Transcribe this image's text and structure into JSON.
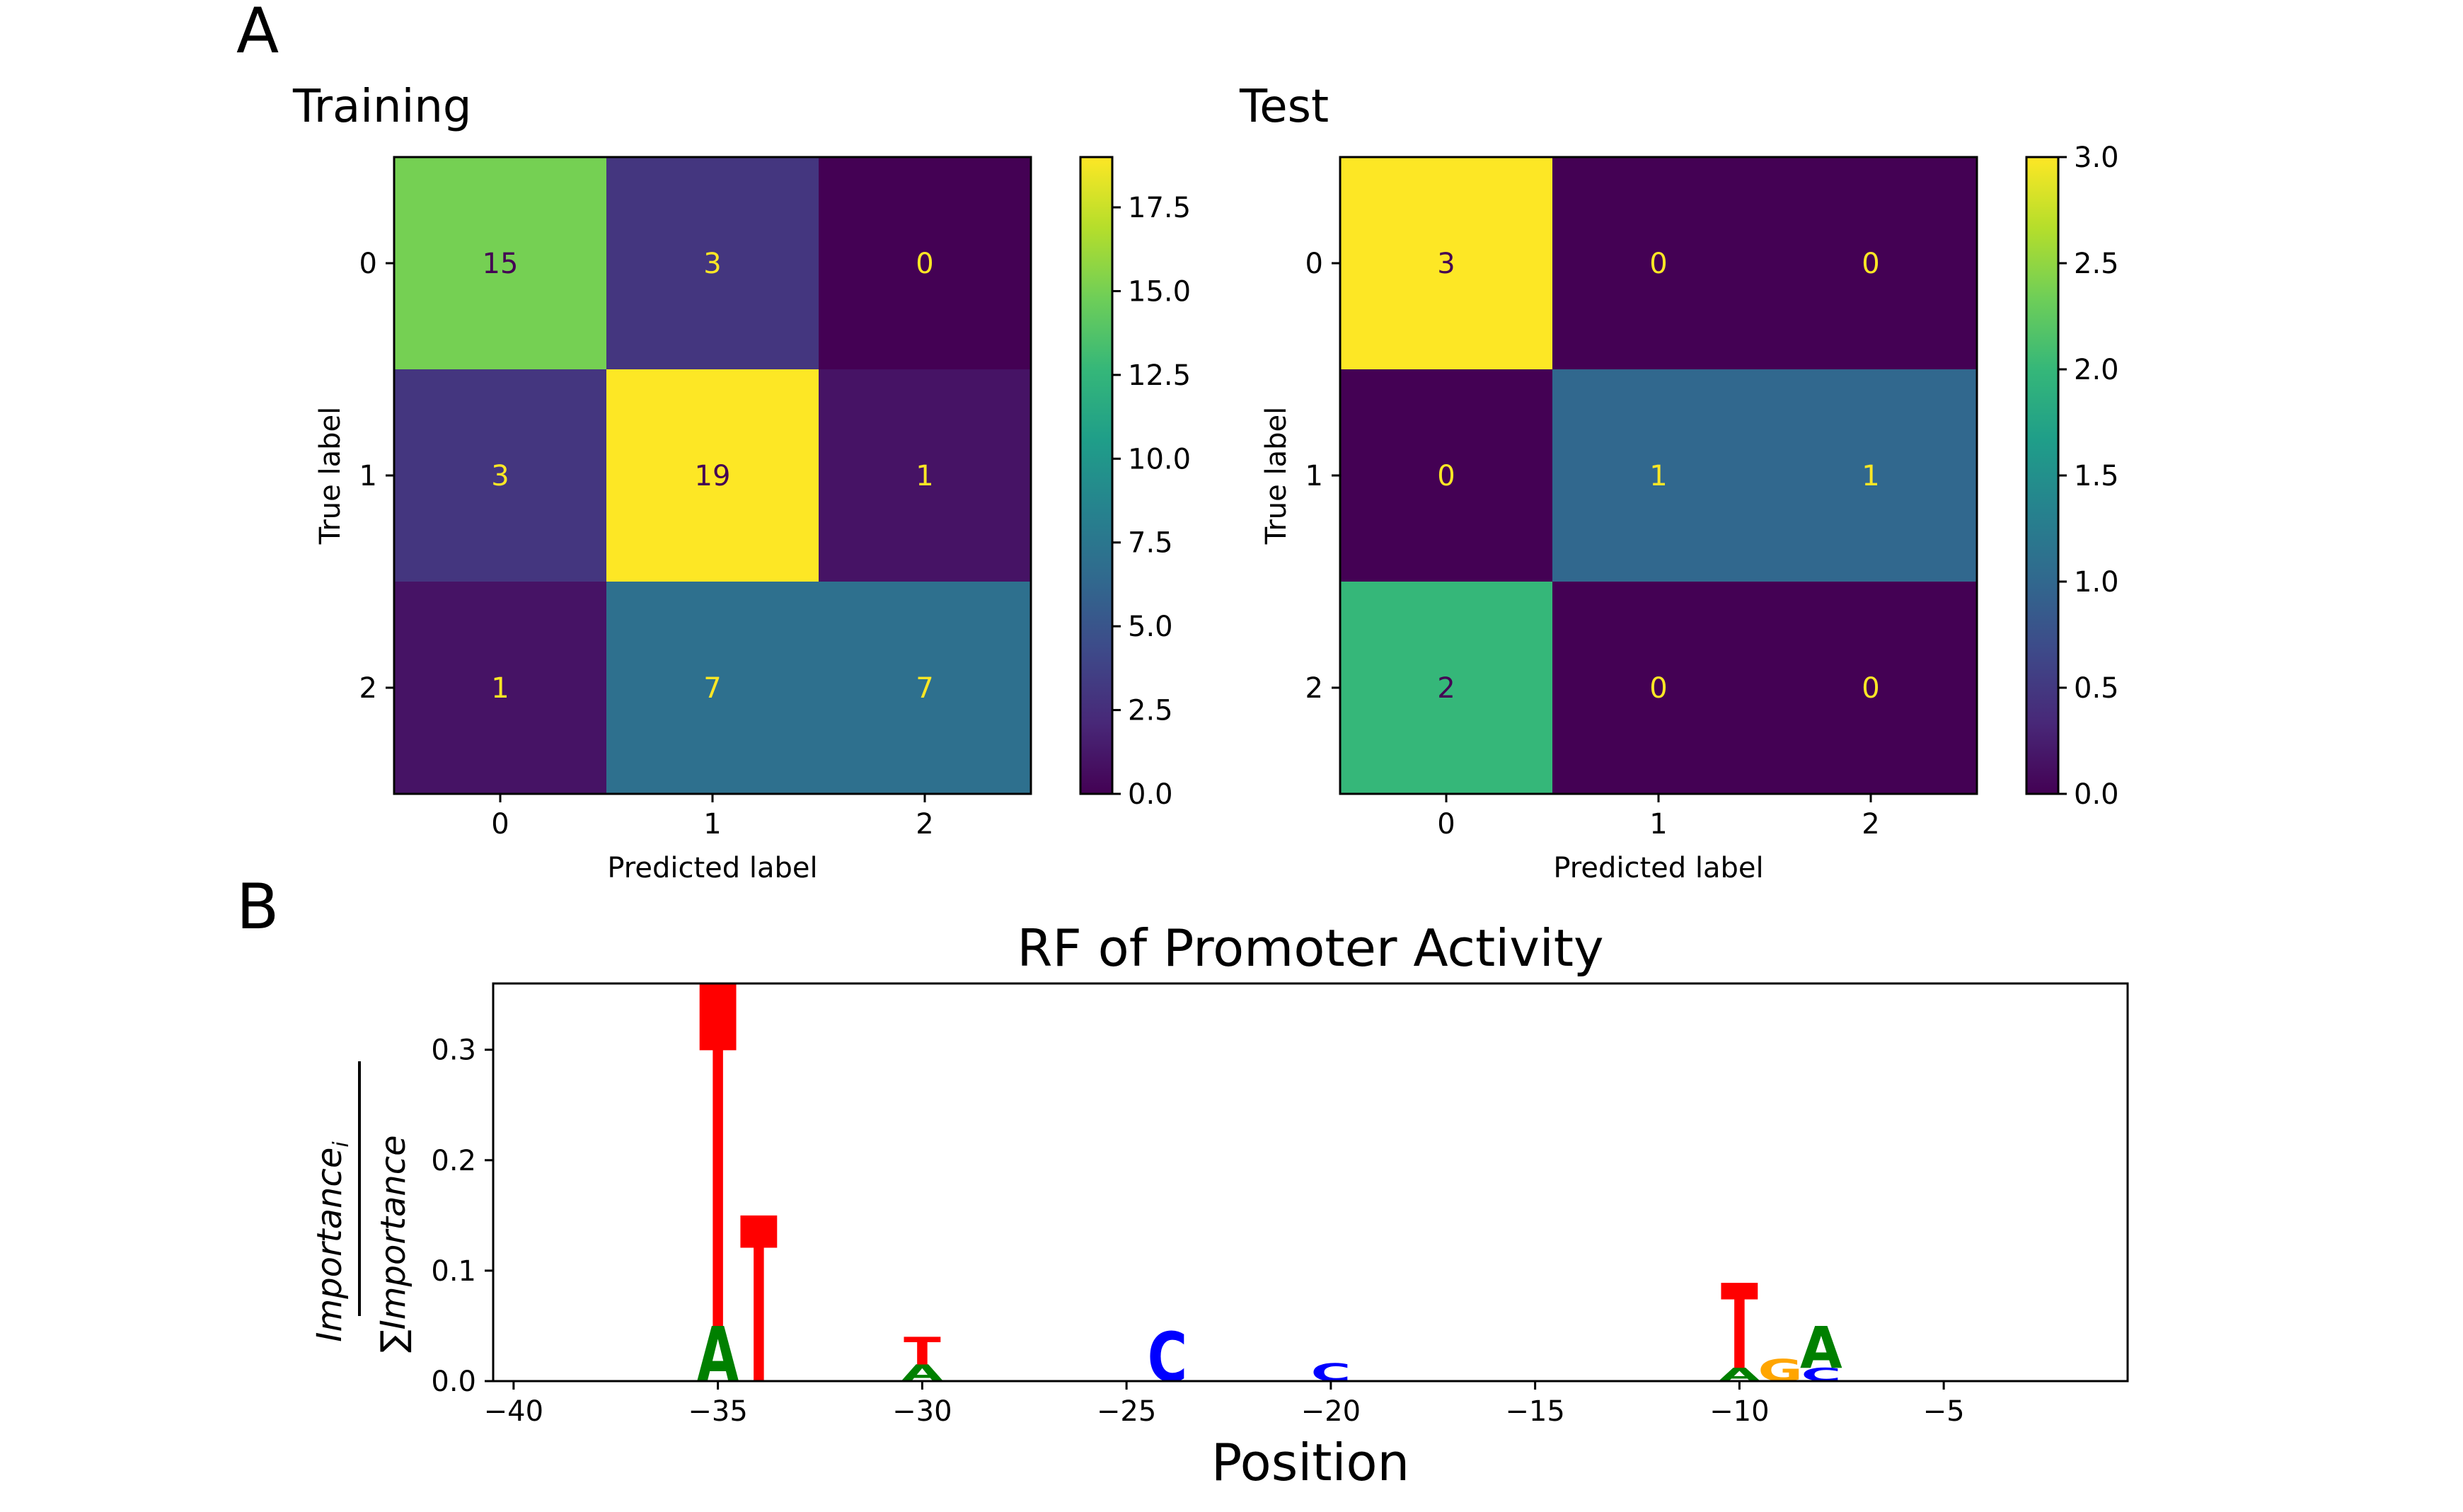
{
  "panel_labels": {
    "a": "A",
    "b": "B"
  },
  "colors": {
    "viridis_stops": [
      "#440154",
      "#482878",
      "#3e4989",
      "#31688e",
      "#26828e",
      "#1f9e89",
      "#35b779",
      "#6ece58",
      "#b5de2b",
      "#fde725"
    ],
    "dark_text": "#440154",
    "light_text": "#fde725",
    "base_T": "#ff0000",
    "base_A": "#008000",
    "base_C": "#0000ff",
    "base_G": "#ffa500"
  },
  "chart_data": [
    {
      "type": "heatmap",
      "title": "Training",
      "xlabel": "Predicted label",
      "ylabel": "True label",
      "x_ticks": [
        "0",
        "1",
        "2"
      ],
      "y_ticks": [
        "0",
        "1",
        "2"
      ],
      "matrix": [
        [
          15,
          3,
          0
        ],
        [
          3,
          19,
          1
        ],
        [
          1,
          7,
          7
        ]
      ],
      "cell_labels": [
        [
          "15",
          "3",
          "0"
        ],
        [
          "3",
          "19",
          "1"
        ],
        [
          "1",
          "7",
          "7"
        ]
      ],
      "vmin": 0,
      "vmax": 19,
      "colorbar_ticks": [
        0.0,
        2.5,
        5.0,
        7.5,
        10.0,
        12.5,
        15.0,
        17.5
      ],
      "colorbar_tick_labels": [
        "0.0",
        "2.5",
        "5.0",
        "7.5",
        "10.0",
        "12.5",
        "15.0",
        "17.5"
      ]
    },
    {
      "type": "heatmap",
      "title": "Test",
      "xlabel": "Predicted label",
      "ylabel": "True label",
      "x_ticks": [
        "0",
        "1",
        "2"
      ],
      "y_ticks": [
        "0",
        "1",
        "2"
      ],
      "matrix": [
        [
          3,
          0,
          0
        ],
        [
          0,
          1,
          1
        ],
        [
          2,
          0,
          0
        ]
      ],
      "cell_labels": [
        [
          "3",
          "0",
          "0"
        ],
        [
          "0",
          "1",
          "1"
        ],
        [
          "2",
          "0",
          "0"
        ]
      ],
      "vmin": 0,
      "vmax": 3,
      "colorbar_ticks": [
        0.0,
        0.5,
        1.0,
        1.5,
        2.0,
        2.5,
        3.0
      ],
      "colorbar_tick_labels": [
        "0.0",
        "0.5",
        "1.0",
        "1.5",
        "2.0",
        "2.5",
        "3.0"
      ]
    },
    {
      "type": "bar",
      "subtype": "sequence-logo",
      "title": "RF of Promoter Activity",
      "xlabel": "Position",
      "ylabel_numerator": "Importance",
      "ylabel_subscript": "i",
      "ylabel_denominator_sum": "∑",
      "ylabel_denominator": "Importance",
      "xlim": [
        -40.5,
        -0.5
      ],
      "ylim": [
        0,
        0.36
      ],
      "x_ticks": [
        -40,
        -35,
        -30,
        -25,
        -20,
        -15,
        -10,
        -5
      ],
      "x_tick_labels": [
        "−40",
        "−35",
        "−30",
        "−25",
        "−20",
        "−15",
        "−10",
        "−5"
      ],
      "y_ticks": [
        0.0,
        0.1,
        0.2,
        0.3
      ],
      "y_tick_labels": [
        "0.0",
        "0.1",
        "0.2",
        "0.3"
      ],
      "letters": [
        {
          "position": -35,
          "base": "A",
          "bottom": 0.0,
          "height": 0.05
        },
        {
          "position": -35,
          "base": "T",
          "bottom": 0.05,
          "height": 0.31
        },
        {
          "position": -34,
          "base": "T",
          "bottom": 0.0,
          "height": 0.15
        },
        {
          "position": -30,
          "base": "A",
          "bottom": 0.0,
          "height": 0.015
        },
        {
          "position": -30,
          "base": "T",
          "bottom": 0.015,
          "height": 0.025
        },
        {
          "position": -24,
          "base": "C",
          "bottom": 0.0,
          "height": 0.045
        },
        {
          "position": -20,
          "base": "C",
          "bottom": 0.0,
          "height": 0.016
        },
        {
          "position": -10,
          "base": "A",
          "bottom": 0.0,
          "height": 0.012
        },
        {
          "position": -10,
          "base": "T",
          "bottom": 0.012,
          "height": 0.077
        },
        {
          "position": -9,
          "base": "G",
          "bottom": 0.0,
          "height": 0.02
        },
        {
          "position": -8,
          "base": "C",
          "bottom": 0.0,
          "height": 0.012
        },
        {
          "position": -8,
          "base": "A",
          "bottom": 0.012,
          "height": 0.038
        }
      ]
    }
  ]
}
